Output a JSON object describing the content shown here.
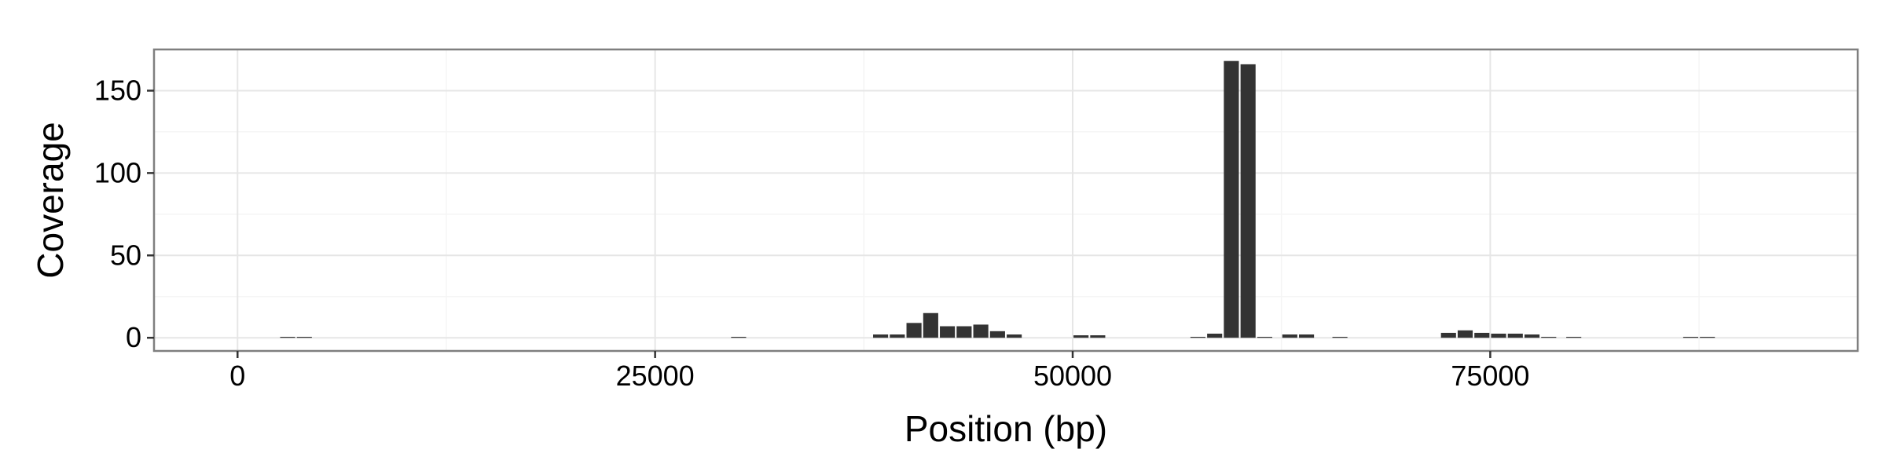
{
  "chart_data": {
    "type": "bar",
    "xlabel": "Position (bp)",
    "ylabel": "Coverage",
    "xlim": [
      -5000,
      97000
    ],
    "ylim": [
      -8,
      175
    ],
    "x_ticks": [
      0,
      25000,
      50000,
      75000
    ],
    "x_tick_labels": [
      "0",
      "25000",
      "50000",
      "75000"
    ],
    "y_ticks": [
      0,
      50,
      100,
      150
    ],
    "y_tick_labels": [
      "0",
      "50",
      "100",
      "150"
    ],
    "grid": true,
    "bar_width": 900,
    "bar_color": "#333333",
    "x": [
      3000,
      4000,
      30000,
      38500,
      39500,
      40500,
      41500,
      42500,
      43500,
      44500,
      45500,
      46500,
      50500,
      51500,
      57500,
      58500,
      59500,
      60500,
      61500,
      63000,
      64000,
      66000,
      72500,
      73500,
      74500,
      75500,
      76500,
      77500,
      78500,
      80000,
      87000,
      88000
    ],
    "values": [
      0.5,
      0.5,
      0.5,
      2,
      2,
      9,
      15,
      7,
      7,
      8,
      4,
      2,
      1.5,
      1.5,
      0.5,
      2.5,
      168,
      166,
      0.5,
      2,
      2,
      0.5,
      3,
      4.5,
      3,
      2.5,
      2.5,
      2,
      0.5,
      0.5,
      0.5,
      0.5
    ]
  }
}
